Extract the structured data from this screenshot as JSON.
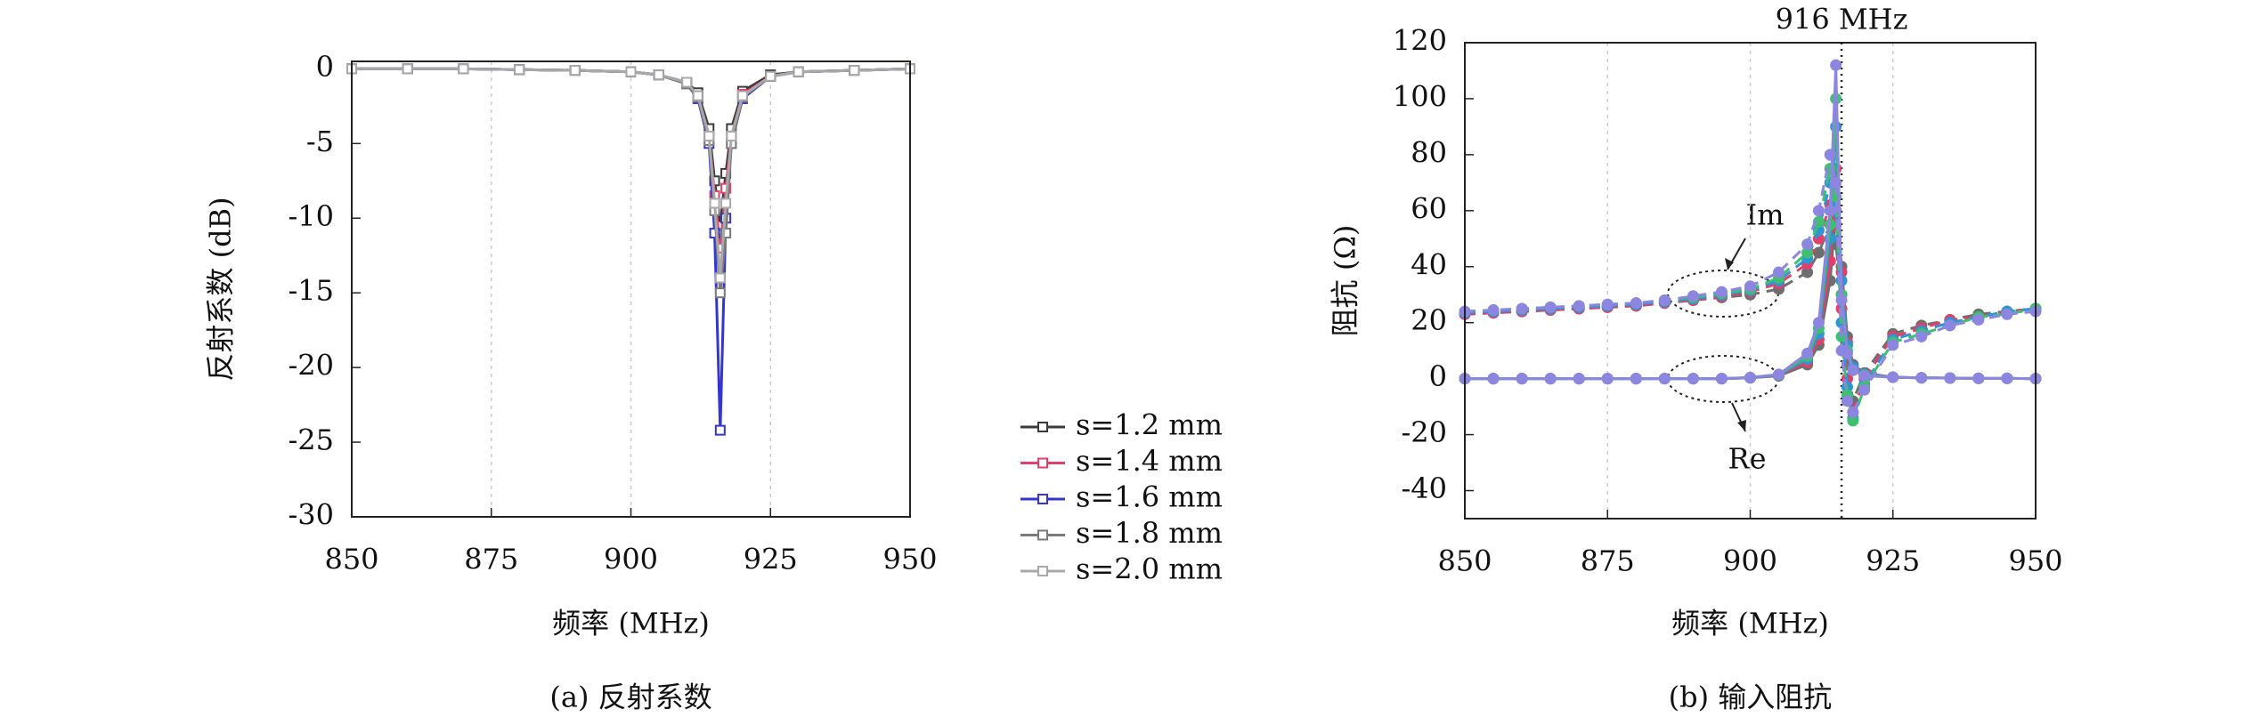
{
  "chart_data": [
    {
      "type": "line",
      "caption": "(a) 反射系数",
      "xlabel": "频率 (MHz)",
      "ylabel": "反射系数 (dB)",
      "x": [
        850,
        860,
        870,
        880,
        890,
        900,
        905,
        910,
        912,
        914,
        915,
        916,
        917,
        918,
        920,
        925,
        930,
        940,
        950
      ],
      "xlim": [
        850,
        950
      ],
      "xticks": [
        850,
        875,
        900,
        925,
        950
      ],
      "ylim": [
        -30,
        0.5
      ],
      "yticks": [
        -30,
        -25,
        -20,
        -15,
        -10,
        -5,
        0
      ],
      "grid": "x",
      "marker": "square",
      "series": [
        {
          "name": "s=1.2 mm",
          "color": "#3a3a3a",
          "values": [
            0,
            0,
            0,
            -0.05,
            -0.1,
            -0.2,
            -0.4,
            -0.9,
            -1.6,
            -4,
            -7.5,
            -10.5,
            -7,
            -4,
            -1.5,
            -0.4,
            -0.2,
            -0.1,
            0
          ]
        },
        {
          "name": "s=1.4 mm",
          "color": "#e0406a",
          "values": [
            0,
            0,
            0,
            -0.05,
            -0.1,
            -0.2,
            -0.4,
            -1,
            -1.8,
            -4.5,
            -8.5,
            -12,
            -8,
            -4.5,
            -1.7,
            -0.5,
            -0.2,
            -0.1,
            0
          ]
        },
        {
          "name": "s=1.6 mm",
          "color": "#3535d0",
          "values": [
            0,
            0,
            0,
            -0.05,
            -0.1,
            -0.2,
            -0.4,
            -1,
            -2,
            -5,
            -11,
            -24.2,
            -10,
            -5,
            -2,
            -0.5,
            -0.2,
            -0.1,
            0
          ]
        },
        {
          "name": "s=1.8 mm",
          "color": "#7a7a7a",
          "values": [
            0,
            0,
            0,
            -0.05,
            -0.1,
            -0.2,
            -0.4,
            -1,
            -1.9,
            -4.8,
            -9.5,
            -15,
            -11,
            -5,
            -1.9,
            -0.5,
            -0.2,
            -0.1,
            0
          ]
        },
        {
          "name": "s=2.0 mm",
          "color": "#a8a8a8",
          "values": [
            0,
            0,
            0,
            -0.05,
            -0.1,
            -0.2,
            -0.4,
            -0.9,
            -1.8,
            -4.5,
            -9,
            -14,
            -9,
            -4.5,
            -1.8,
            -0.5,
            -0.2,
            -0.1,
            0
          ]
        }
      ]
    },
    {
      "type": "line",
      "caption": "(b) 输入阻抗",
      "xlabel": "频率 (MHz)",
      "ylabel": "阻抗 (Ω)",
      "x": [
        850,
        855,
        860,
        865,
        870,
        875,
        880,
        885,
        890,
        895,
        900,
        905,
        910,
        912,
        914,
        915,
        916,
        917,
        918,
        920,
        925,
        930,
        935,
        940,
        945,
        950
      ],
      "xlim": [
        850,
        950
      ],
      "xticks": [
        850,
        875,
        900,
        925,
        950
      ],
      "ylim": [
        -50,
        120
      ],
      "yticks": [
        -40,
        -20,
        0,
        20,
        40,
        60,
        80,
        100,
        120
      ],
      "grid": "x",
      "marker": "circle",
      "vline": {
        "x": 916,
        "label": "916 MHz"
      },
      "annotations": [
        "Im",
        "Re"
      ],
      "line_styles": {
        "im": "dashed",
        "re": "solid"
      },
      "series": [
        {
          "color": "#6e6e6e",
          "im": [
            23,
            23.5,
            24,
            24.5,
            25,
            25.5,
            26,
            27,
            28,
            29,
            30,
            32,
            38,
            45,
            55,
            48,
            30,
            5,
            -8,
            2,
            16,
            19,
            21,
            23,
            24,
            25
          ],
          "re": [
            0,
            0,
            0,
            0,
            0,
            0,
            0,
            0,
            0,
            0,
            0.3,
            1,
            5,
            12,
            35,
            60,
            40,
            15,
            5,
            2,
            0.5,
            0.3,
            0.2,
            0.1,
            0.1,
            0
          ]
        },
        {
          "color": "#e0406a",
          "im": [
            23,
            23.5,
            24,
            24.5,
            25,
            25.5,
            26,
            27,
            28,
            29.5,
            31,
            34,
            41,
            50,
            62,
            55,
            25,
            0,
            -12,
            0,
            15,
            18,
            21,
            22,
            24,
            25
          ],
          "re": [
            0,
            0,
            0,
            0,
            0,
            0,
            0,
            0,
            0,
            0,
            0.3,
            1.2,
            6,
            14,
            42,
            75,
            38,
            13,
            4,
            1.5,
            0.5,
            0.3,
            0.2,
            0.1,
            0.1,
            0
          ]
        },
        {
          "color": "#2f95d5",
          "im": [
            23.5,
            24,
            24.5,
            25,
            25.5,
            26,
            26.5,
            27.5,
            28.5,
            30,
            31.5,
            35,
            43,
            53,
            70,
            60,
            20,
            -3,
            -14,
            -2,
            14,
            17,
            20,
            22,
            24,
            25
          ],
          "re": [
            0,
            0,
            0,
            0,
            0,
            0,
            0,
            0,
            0,
            0,
            0.3,
            1.3,
            7,
            16,
            50,
            90,
            35,
            12,
            4,
            1.5,
            0.5,
            0.3,
            0.2,
            0.1,
            0.1,
            0
          ]
        },
        {
          "color": "#3fbf70",
          "im": [
            24,
            24.5,
            25,
            25.5,
            26,
            26.5,
            27,
            28,
            29,
            30.5,
            32,
            36,
            45,
            56,
            75,
            65,
            15,
            -6,
            -15,
            -3,
            13,
            16,
            19,
            22,
            23,
            25
          ],
          "re": [
            0,
            0,
            0,
            0,
            0,
            0,
            0,
            0,
            0,
            0,
            0.4,
            1.4,
            8,
            18,
            55,
            100,
            30,
            10,
            3,
            1.2,
            0.5,
            0.3,
            0.2,
            0.1,
            0.1,
            0
          ]
        },
        {
          "color": "#8c86e0",
          "im": [
            24,
            24.5,
            25,
            25.5,
            26,
            26.5,
            27,
            28,
            29.5,
            31,
            33,
            38,
            48,
            60,
            80,
            70,
            10,
            -8,
            -12,
            -4,
            12,
            15,
            19,
            21,
            23,
            24
          ],
          "re": [
            0,
            0,
            0,
            0,
            0,
            0,
            0,
            0,
            0,
            0,
            0.4,
            1.5,
            9,
            20,
            60,
            112,
            28,
            9,
            3,
            1,
            0.5,
            0.3,
            0.2,
            0.1,
            0.1,
            0
          ]
        }
      ]
    }
  ]
}
